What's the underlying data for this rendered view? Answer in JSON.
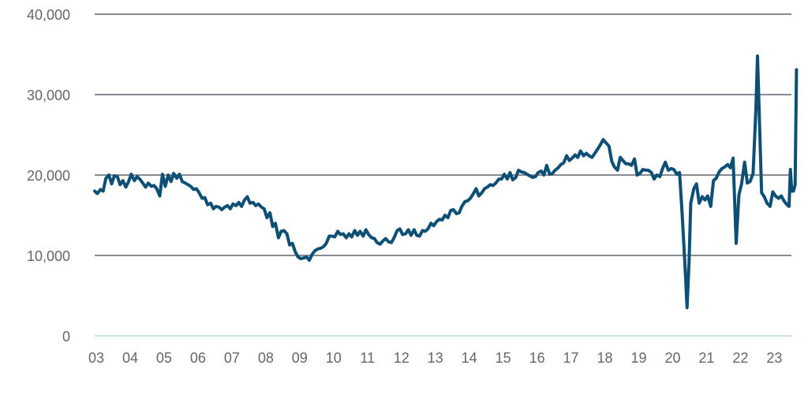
{
  "chart_data": {
    "type": "line",
    "title": "",
    "xlabel": "",
    "ylabel": "",
    "ylim": [
      0,
      40000
    ],
    "xlim": [
      2003.0,
      2023.55
    ],
    "grid": true,
    "legend": "none",
    "colors": {
      "line": "#0e4f75",
      "grid": "#5f6670",
      "baseline": "#b9d7ea",
      "text": "#666666"
    },
    "y_ticks": [
      {
        "value": 0,
        "label": "0"
      },
      {
        "value": 10000,
        "label": "10,000"
      },
      {
        "value": 20000,
        "label": "20,000"
      },
      {
        "value": 30000,
        "label": "30,000"
      },
      {
        "value": 40000,
        "label": "40,000"
      }
    ],
    "x_ticks": [
      {
        "value": 2003,
        "label": "03"
      },
      {
        "value": 2004,
        "label": "04"
      },
      {
        "value": 2005,
        "label": "05"
      },
      {
        "value": 2006,
        "label": "06"
      },
      {
        "value": 2007,
        "label": "07"
      },
      {
        "value": 2008,
        "label": "08"
      },
      {
        "value": 2009,
        "label": "09"
      },
      {
        "value": 2010,
        "label": "10"
      },
      {
        "value": 2011,
        "label": "11"
      },
      {
        "value": 2012,
        "label": "12"
      },
      {
        "value": 2013,
        "label": "13"
      },
      {
        "value": 2014,
        "label": "14"
      },
      {
        "value": 2015,
        "label": "15"
      },
      {
        "value": 2016,
        "label": "16"
      },
      {
        "value": 2017,
        "label": "17"
      },
      {
        "value": 2018,
        "label": "18"
      },
      {
        "value": 2019,
        "label": "19"
      },
      {
        "value": 2020,
        "label": "20"
      },
      {
        "value": 2021,
        "label": "21"
      },
      {
        "value": 2022,
        "label": "22"
      },
      {
        "value": 2023,
        "label": "23"
      }
    ],
    "series": [
      {
        "points": [
          [
            2003.0,
            18000
          ],
          [
            2003.08,
            17700
          ],
          [
            2003.17,
            18200
          ],
          [
            2003.25,
            18000
          ],
          [
            2003.33,
            19600
          ],
          [
            2003.42,
            20000
          ],
          [
            2003.5,
            18900
          ],
          [
            2003.58,
            19900
          ],
          [
            2003.67,
            19800
          ],
          [
            2003.75,
            18800
          ],
          [
            2003.83,
            19300
          ],
          [
            2003.92,
            18500
          ],
          [
            2004.0,
            19200
          ],
          [
            2004.08,
            20100
          ],
          [
            2004.17,
            19300
          ],
          [
            2004.25,
            19800
          ],
          [
            2004.33,
            19500
          ],
          [
            2004.42,
            19000
          ],
          [
            2004.5,
            18500
          ],
          [
            2004.58,
            19000
          ],
          [
            2004.67,
            18600
          ],
          [
            2004.75,
            18700
          ],
          [
            2004.83,
            18300
          ],
          [
            2004.92,
            17400
          ],
          [
            2005.0,
            20100
          ],
          [
            2005.08,
            18600
          ],
          [
            2005.17,
            20000
          ],
          [
            2005.25,
            19200
          ],
          [
            2005.33,
            20200
          ],
          [
            2005.42,
            19600
          ],
          [
            2005.5,
            20100
          ],
          [
            2005.58,
            19200
          ],
          [
            2005.67,
            19000
          ],
          [
            2005.75,
            18800
          ],
          [
            2005.83,
            18600
          ],
          [
            2005.92,
            18200
          ],
          [
            2006.0,
            18300
          ],
          [
            2006.08,
            17800
          ],
          [
            2006.17,
            17100
          ],
          [
            2006.25,
            17200
          ],
          [
            2006.33,
            16300
          ],
          [
            2006.42,
            16500
          ],
          [
            2006.5,
            15800
          ],
          [
            2006.58,
            16100
          ],
          [
            2006.67,
            16000
          ],
          [
            2006.75,
            15700
          ],
          [
            2006.83,
            16000
          ],
          [
            2006.92,
            16200
          ],
          [
            2007.0,
            15800
          ],
          [
            2007.08,
            16400
          ],
          [
            2007.17,
            16200
          ],
          [
            2007.25,
            16600
          ],
          [
            2007.33,
            16100
          ],
          [
            2007.42,
            16900
          ],
          [
            2007.5,
            17300
          ],
          [
            2007.58,
            16500
          ],
          [
            2007.67,
            16600
          ],
          [
            2007.75,
            16200
          ],
          [
            2007.83,
            16400
          ],
          [
            2007.92,
            16000
          ],
          [
            2008.0,
            15800
          ],
          [
            2008.08,
            14700
          ],
          [
            2008.17,
            15300
          ],
          [
            2008.25,
            13600
          ],
          [
            2008.33,
            14000
          ],
          [
            2008.42,
            12200
          ],
          [
            2008.5,
            13000
          ],
          [
            2008.58,
            13100
          ],
          [
            2008.67,
            12700
          ],
          [
            2008.75,
            11300
          ],
          [
            2008.83,
            11500
          ],
          [
            2008.92,
            10400
          ],
          [
            2009.0,
            9800
          ],
          [
            2009.08,
            9600
          ],
          [
            2009.17,
            9700
          ],
          [
            2009.25,
            9800
          ],
          [
            2009.33,
            9400
          ],
          [
            2009.42,
            10200
          ],
          [
            2009.5,
            10600
          ],
          [
            2009.58,
            10800
          ],
          [
            2009.67,
            10900
          ],
          [
            2009.75,
            11100
          ],
          [
            2009.83,
            11500
          ],
          [
            2009.92,
            12400
          ],
          [
            2010.0,
            12400
          ],
          [
            2010.08,
            12300
          ],
          [
            2010.17,
            13000
          ],
          [
            2010.25,
            12600
          ],
          [
            2010.33,
            12700
          ],
          [
            2010.42,
            12200
          ],
          [
            2010.5,
            12700
          ],
          [
            2010.58,
            12300
          ],
          [
            2010.67,
            13100
          ],
          [
            2010.75,
            12500
          ],
          [
            2010.83,
            13000
          ],
          [
            2010.92,
            12400
          ],
          [
            2011.0,
            13200
          ],
          [
            2011.08,
            12600
          ],
          [
            2011.17,
            12200
          ],
          [
            2011.25,
            12100
          ],
          [
            2011.33,
            11600
          ],
          [
            2011.42,
            11400
          ],
          [
            2011.5,
            11800
          ],
          [
            2011.58,
            12100
          ],
          [
            2011.67,
            11700
          ],
          [
            2011.75,
            11600
          ],
          [
            2011.83,
            12200
          ],
          [
            2011.92,
            13100
          ],
          [
            2012.0,
            13300
          ],
          [
            2012.08,
            12600
          ],
          [
            2012.17,
            12700
          ],
          [
            2012.25,
            13200
          ],
          [
            2012.33,
            12500
          ],
          [
            2012.42,
            13200
          ],
          [
            2012.5,
            12500
          ],
          [
            2012.58,
            12400
          ],
          [
            2012.67,
            13100
          ],
          [
            2012.75,
            13000
          ],
          [
            2012.83,
            13300
          ],
          [
            2012.92,
            14000
          ],
          [
            2013.0,
            13700
          ],
          [
            2013.08,
            14200
          ],
          [
            2013.17,
            14500
          ],
          [
            2013.25,
            14400
          ],
          [
            2013.33,
            15000
          ],
          [
            2013.42,
            14700
          ],
          [
            2013.5,
            15600
          ],
          [
            2013.58,
            15700
          ],
          [
            2013.67,
            15200
          ],
          [
            2013.75,
            15300
          ],
          [
            2013.83,
            16100
          ],
          [
            2013.92,
            16700
          ],
          [
            2014.0,
            16800
          ],
          [
            2014.08,
            17100
          ],
          [
            2014.17,
            17700
          ],
          [
            2014.25,
            18300
          ],
          [
            2014.33,
            17400
          ],
          [
            2014.42,
            17800
          ],
          [
            2014.5,
            18300
          ],
          [
            2014.58,
            18500
          ],
          [
            2014.67,
            18800
          ],
          [
            2014.75,
            18700
          ],
          [
            2014.83,
            19000
          ],
          [
            2014.92,
            19500
          ],
          [
            2015.0,
            19500
          ],
          [
            2015.08,
            20100
          ],
          [
            2015.17,
            19500
          ],
          [
            2015.25,
            20300
          ],
          [
            2015.33,
            19400
          ],
          [
            2015.42,
            19700
          ],
          [
            2015.5,
            20600
          ],
          [
            2015.58,
            20400
          ],
          [
            2015.67,
            20300
          ],
          [
            2015.75,
            20100
          ],
          [
            2015.83,
            19900
          ],
          [
            2015.92,
            19700
          ],
          [
            2016.0,
            19800
          ],
          [
            2016.08,
            20300
          ],
          [
            2016.17,
            20500
          ],
          [
            2016.25,
            20000
          ],
          [
            2016.33,
            21200
          ],
          [
            2016.42,
            20100
          ],
          [
            2016.5,
            20200
          ],
          [
            2016.58,
            20600
          ],
          [
            2016.67,
            20900
          ],
          [
            2016.75,
            21300
          ],
          [
            2016.83,
            21500
          ],
          [
            2016.92,
            22400
          ],
          [
            2017.0,
            21800
          ],
          [
            2017.08,
            22100
          ],
          [
            2017.17,
            22500
          ],
          [
            2017.25,
            22200
          ],
          [
            2017.33,
            23000
          ],
          [
            2017.42,
            22400
          ],
          [
            2017.5,
            22700
          ],
          [
            2017.58,
            22400
          ],
          [
            2017.67,
            22200
          ],
          [
            2017.75,
            22700
          ],
          [
            2017.83,
            23200
          ],
          [
            2017.92,
            23800
          ],
          [
            2018.0,
            24400
          ],
          [
            2018.08,
            24000
          ],
          [
            2018.17,
            23600
          ],
          [
            2018.25,
            21700
          ],
          [
            2018.33,
            21000
          ],
          [
            2018.42,
            20600
          ],
          [
            2018.5,
            22200
          ],
          [
            2018.58,
            21800
          ],
          [
            2018.67,
            21400
          ],
          [
            2018.75,
            21400
          ],
          [
            2018.83,
            21200
          ],
          [
            2018.92,
            22000
          ],
          [
            2019.0,
            20000
          ],
          [
            2019.08,
            20200
          ],
          [
            2019.17,
            20700
          ],
          [
            2019.25,
            20600
          ],
          [
            2019.33,
            20600
          ],
          [
            2019.42,
            20300
          ],
          [
            2019.5,
            19500
          ],
          [
            2019.58,
            20000
          ],
          [
            2019.67,
            19800
          ],
          [
            2019.75,
            20800
          ],
          [
            2019.83,
            21600
          ],
          [
            2019.92,
            20600
          ],
          [
            2020.0,
            20800
          ],
          [
            2020.08,
            20700
          ],
          [
            2020.17,
            20100
          ],
          [
            2020.25,
            20300
          ],
          [
            2020.33,
            15000
          ],
          [
            2020.42,
            8000
          ],
          [
            2020.47,
            3500
          ],
          [
            2020.53,
            9000
          ],
          [
            2020.58,
            16500
          ],
          [
            2020.67,
            18300
          ],
          [
            2020.75,
            18900
          ],
          [
            2020.83,
            16500
          ],
          [
            2020.92,
            17300
          ],
          [
            2021.0,
            16900
          ],
          [
            2021.08,
            17400
          ],
          [
            2021.17,
            16100
          ],
          [
            2021.25,
            19300
          ],
          [
            2021.33,
            19600
          ],
          [
            2021.42,
            20400
          ],
          [
            2021.5,
            20800
          ],
          [
            2021.58,
            21000
          ],
          [
            2021.67,
            21300
          ],
          [
            2021.75,
            20900
          ],
          [
            2021.83,
            22100
          ],
          [
            2021.92,
            11500
          ],
          [
            2022.0,
            17500
          ],
          [
            2022.08,
            18900
          ],
          [
            2022.17,
            21600
          ],
          [
            2022.25,
            19000
          ],
          [
            2022.33,
            19200
          ],
          [
            2022.42,
            20200
          ],
          [
            2022.5,
            28000
          ],
          [
            2022.55,
            34800
          ],
          [
            2022.62,
            25000
          ],
          [
            2022.67,
            17800
          ],
          [
            2022.75,
            17300
          ],
          [
            2022.83,
            16500
          ],
          [
            2022.92,
            16100
          ],
          [
            2023.0,
            17900
          ],
          [
            2023.08,
            17400
          ],
          [
            2023.17,
            17100
          ],
          [
            2023.25,
            17400
          ],
          [
            2023.33,
            16800
          ],
          [
            2023.42,
            16300
          ],
          [
            2023.48,
            16100
          ],
          [
            2023.52,
            20700
          ],
          [
            2023.56,
            18000
          ],
          [
            2023.61,
            18000
          ],
          [
            2023.66,
            18800
          ],
          [
            2023.7,
            33100
          ]
        ]
      }
    ]
  }
}
